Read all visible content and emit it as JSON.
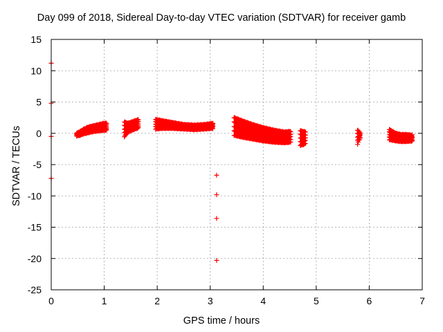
{
  "chart_data": {
    "type": "scatter",
    "title": "Day 099 of 2018, Sidereal Day-to-day VTEC variation (SDTVAR) for receiver gamb",
    "xlabel": "GPS time / hours",
    "ylabel": "SDTVAR / TECUs",
    "xlim": [
      0,
      7
    ],
    "ylim": [
      -25,
      15
    ],
    "xticks": [
      0,
      1,
      2,
      3,
      4,
      5,
      6,
      7
    ],
    "yticks": [
      15,
      10,
      5,
      0,
      -5,
      -10,
      -15,
      -20,
      -25
    ],
    "grid": true,
    "marker": "+",
    "color": "#ff0000",
    "segments": [
      {
        "x": [
          0.48,
          0.55,
          0.6,
          0.7,
          0.8,
          0.9,
          1.0,
          1.05
        ],
        "y_upper": [
          0.0,
          0.3,
          0.6,
          1.0,
          1.2,
          1.4,
          1.6,
          1.6
        ],
        "y_lower": [
          -0.4,
          -0.3,
          -0.1,
          0.1,
          0.3,
          0.4,
          0.5,
          0.5
        ]
      },
      {
        "x": [
          1.38,
          1.45,
          1.55,
          1.65
        ],
        "y_upper": [
          1.8,
          1.6,
          1.9,
          2.2
        ],
        "y_lower": [
          -0.5,
          0.2,
          0.6,
          0.9
        ]
      },
      {
        "x": [
          1.97,
          2.1,
          2.3,
          2.5,
          2.7,
          2.9,
          3.05
        ],
        "y_upper": [
          2.2,
          2.0,
          1.7,
          1.4,
          1.3,
          1.4,
          1.6
        ],
        "y_lower": [
          0.7,
          0.8,
          0.8,
          0.7,
          0.6,
          0.7,
          0.8
        ]
      },
      {
        "x": [
          3.45,
          3.6,
          3.8,
          4.0,
          4.2,
          4.4,
          4.52
        ],
        "y_upper": [
          2.5,
          2.0,
          1.4,
          0.9,
          0.5,
          0.2,
          0.3
        ],
        "y_lower": [
          -0.3,
          -0.6,
          -0.9,
          -1.2,
          -1.4,
          -1.5,
          -1.4
        ]
      },
      {
        "x": [
          4.7,
          4.75,
          4.8
        ],
        "y_upper": [
          0.4,
          0.3,
          0.2
        ],
        "y_lower": [
          -1.9,
          -1.8,
          -1.6
        ]
      },
      {
        "x": [
          5.78,
          5.8,
          5.83
        ],
        "y_upper": [
          0.5,
          0.3,
          0.1
        ],
        "y_lower": [
          -1.7,
          -1.2,
          -0.8
        ]
      },
      {
        "x": [
          6.38,
          6.5,
          6.6,
          6.7,
          6.82
        ],
        "y_upper": [
          0.6,
          0.0,
          -0.2,
          -0.2,
          -0.3
        ],
        "y_lower": [
          -1.0,
          -1.2,
          -1.3,
          -1.3,
          -1.2
        ]
      }
    ],
    "outliers": [
      {
        "x": 0.0,
        "y": 11.2
      },
      {
        "x": 0.0,
        "y": 4.8
      },
      {
        "x": 0.0,
        "y": -0.5
      },
      {
        "x": 0.0,
        "y": -7.2
      },
      {
        "x": 3.12,
        "y": -6.7
      },
      {
        "x": 3.12,
        "y": -9.8
      },
      {
        "x": 3.12,
        "y": -13.6
      },
      {
        "x": 3.12,
        "y": -20.3
      }
    ]
  }
}
